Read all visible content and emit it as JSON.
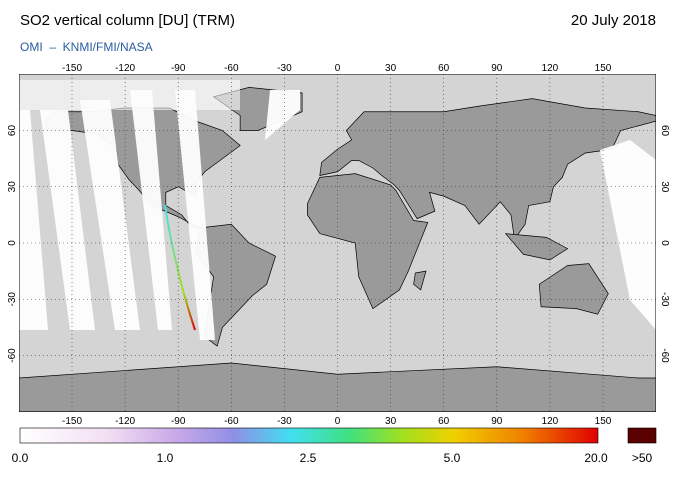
{
  "header": {
    "title": "SO2 vertical column [DU] (TRM)",
    "date": "20 July 2018",
    "source": "OMI  –  KNMI/FMI/NASA"
  },
  "map": {
    "lon_ticks": [
      -150,
      -120,
      -90,
      -60,
      -30,
      0,
      30,
      60,
      90,
      120,
      150
    ],
    "lat_ticks": [
      60,
      30,
      0,
      -30,
      -60
    ]
  },
  "colorbar": {
    "labels": [
      "0.0",
      "1.0",
      "2.5",
      "5.0",
      "20.0"
    ],
    "overflow": ">50"
  }
}
